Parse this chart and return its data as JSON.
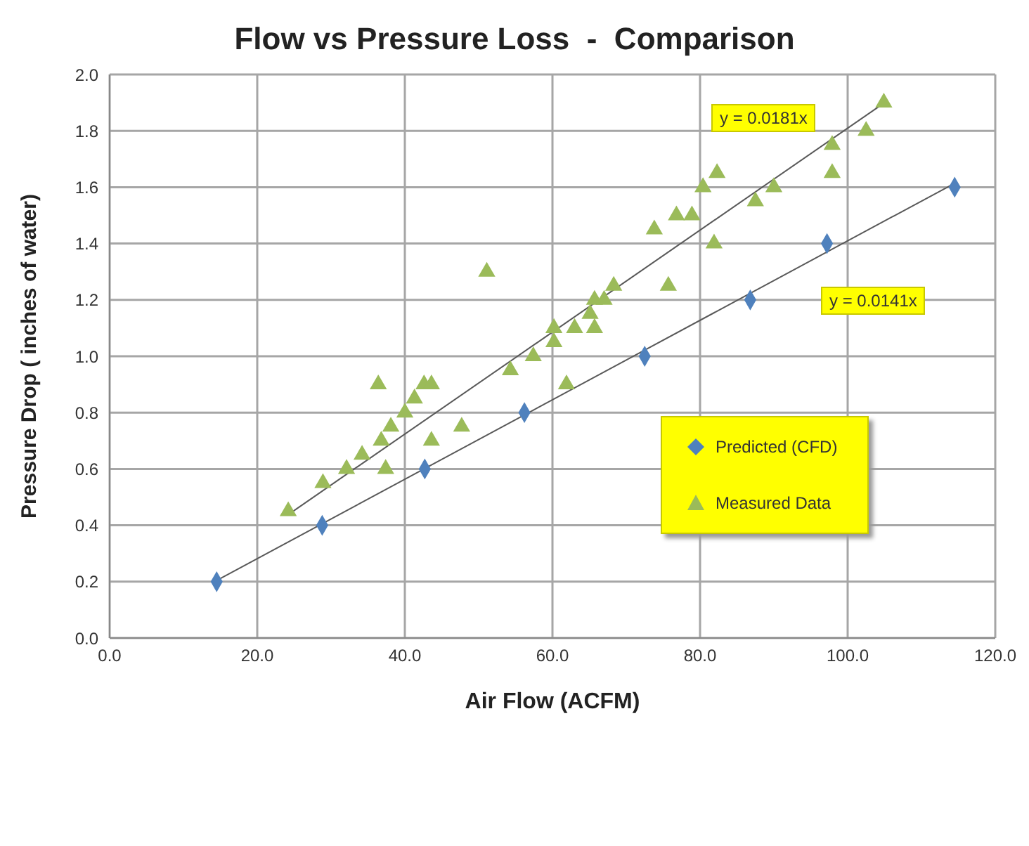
{
  "chart_data": {
    "type": "scatter",
    "title": "Flow vs Pressure Loss  -  Comparison",
    "xlabel": "Air Flow (ACFM)",
    "ylabel": "Pressure Drop ( inches of water)",
    "xlim": [
      0,
      120
    ],
    "xticks": [
      {
        "value": 0,
        "label": "0.0"
      },
      {
        "value": 20,
        "label": "20.0"
      },
      {
        "value": 40,
        "label": "40.0"
      },
      {
        "value": 60,
        "label": "60.0"
      },
      {
        "value": 80,
        "label": "80.0"
      },
      {
        "value": 100,
        "label": "100.0"
      },
      {
        "value": 120,
        "label": "120.0"
      }
    ],
    "ylim": [
      0,
      2
    ],
    "yticks": [
      {
        "value": 0,
        "label": "0.0"
      },
      {
        "value": 0.2,
        "label": "0.2"
      },
      {
        "value": 0.4,
        "label": "0.4"
      },
      {
        "value": 0.6,
        "label": "0.6"
      },
      {
        "value": 0.8,
        "label": "0.8"
      },
      {
        "value": 1,
        "label": "1.0"
      },
      {
        "value": 1.2,
        "label": "1.2"
      },
      {
        "value": 1.4,
        "label": "1.4"
      },
      {
        "value": 1.6,
        "label": "1.6"
      },
      {
        "value": 1.8,
        "label": "1.8"
      },
      {
        "value": 2,
        "label": "2.0"
      }
    ],
    "grid": true,
    "legend": "right",
    "series": [
      {
        "name": "Predicted (CFD)",
        "marker": "diamond",
        "color": "#4f81bd",
        "x": [
          14.5,
          28.8,
          42.7,
          56.2,
          72.5,
          86.8,
          97.2,
          114.5
        ],
        "values": [
          0.2,
          0.4,
          0.6,
          0.8,
          1.0,
          1.2,
          1.4,
          1.6
        ]
      },
      {
        "name": "Measured Data",
        "marker": "triangle",
        "color": "#9bbb59",
        "x": [
          24.2,
          28.9,
          32.1,
          34.2,
          36.8,
          38.1,
          40.0,
          41.3,
          36.4,
          42.6,
          43.6,
          37.4,
          43.6,
          47.7,
          54.3,
          51.1,
          68.3,
          65.7,
          67.0,
          65.1,
          60.2,
          63.0,
          65.7,
          60.2,
          57.4,
          61.9,
          73.8,
          81.9,
          75.7,
          104.9,
          102.5,
          97.9,
          97.9,
          82.3,
          80.4,
          90.0,
          87.5,
          76.8,
          78.9
        ],
        "values": [
          0.45,
          0.55,
          0.6,
          0.65,
          0.7,
          0.75,
          0.8,
          0.85,
          0.9,
          0.9,
          0.9,
          0.6,
          0.7,
          0.75,
          0.95,
          1.3,
          1.25,
          1.2,
          1.2,
          1.15,
          1.1,
          1.1,
          1.1,
          1.05,
          1.0,
          0.9,
          1.45,
          1.4,
          1.25,
          1.9,
          1.8,
          1.75,
          1.65,
          1.65,
          1.6,
          1.6,
          1.55,
          1.5,
          1.5
        ]
      },
      {
        "type": "line",
        "color": "#595959",
        "x": [
          24.2,
          105
        ],
        "values": [
          0.438,
          1.9
        ]
      },
      {
        "type": "line",
        "color": "#595959",
        "x": [
          14.5,
          114.5
        ],
        "values": [
          0.204,
          1.614
        ]
      }
    ],
    "annotations": [
      "y = 0.0181x",
      "y = 0.0141x"
    ]
  }
}
